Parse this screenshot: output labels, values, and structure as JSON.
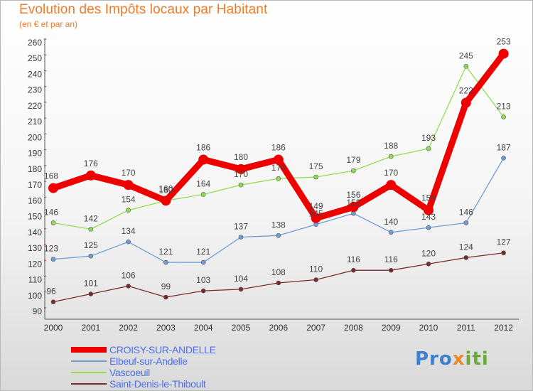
{
  "title": "Evolution des Impôts locaux par Habitant",
  "subtitle": "(en € et par an)",
  "logo": {
    "text_a": "Pro",
    "text_b": "x",
    "text_c": "iti"
  },
  "chart_data": {
    "type": "line",
    "title": "Evolution des Impôts locaux par Habitant",
    "subtitle": "(en € et par an)",
    "xlabel": "",
    "ylabel": "",
    "x": [
      "2000",
      "2001",
      "2002",
      "2003",
      "2004",
      "2005",
      "2006",
      "2007",
      "2008",
      "2009",
      "2010",
      "2011",
      "2012"
    ],
    "ylim": [
      90,
      260
    ],
    "yticks": [
      90,
      100,
      110,
      120,
      130,
      140,
      150,
      160,
      170,
      180,
      190,
      200,
      210,
      220,
      230,
      240,
      250,
      260
    ],
    "grid": false,
    "legend_position": "bottom-left",
    "series": [
      {
        "name": "CROISY-SUR-ANDELLE",
        "color": "#ee0000",
        "width": 9,
        "marker": 7,
        "values": [
          168,
          176,
          170,
          160,
          186,
          180,
          186,
          149,
          156,
          170,
          154,
          222,
          253
        ]
      },
      {
        "name": "Elbeuf-sur-Andelle",
        "color": "#6f9ed2",
        "width": 1.3,
        "marker": 3,
        "values": [
          123,
          125,
          134,
          121,
          121,
          137,
          138,
          145,
          152,
          140,
          143,
          146,
          187
        ]
      },
      {
        "name": "Vascoeuil",
        "color": "#90dd50",
        "width": 1.3,
        "marker": 3,
        "values": [
          146,
          142,
          154,
          160,
          164,
          170,
          174,
          175,
          179,
          188,
          193,
          245,
          213
        ]
      },
      {
        "name": "Saint-Denis-le-Thiboult",
        "color": "#7a2a2a",
        "width": 1.3,
        "marker": 3,
        "values": [
          96,
          101,
          106,
          99,
          103,
          104,
          108,
          110,
          116,
          116,
          120,
          124,
          127
        ]
      }
    ]
  }
}
